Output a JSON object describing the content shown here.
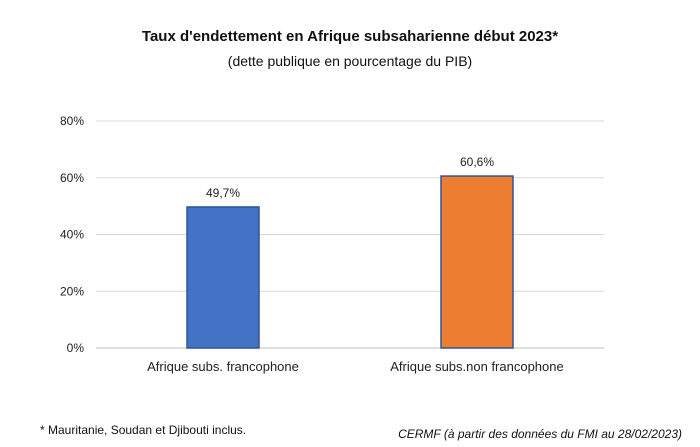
{
  "header": {
    "title": "Taux d'endettement en Afrique subsaharienne début 2023*",
    "subtitle": "(dette publique en pourcentage  du PIB)"
  },
  "footer": {
    "footnote": "* Mauritanie, Soudan et Djibouti inclus.",
    "source": "CERMF (à partir des données du FMI au 28/02/2023)"
  },
  "chart_data": {
    "type": "bar",
    "title": "Taux d'endettement en Afrique subsaharienne début 2023*",
    "subtitle": "(dette publique en pourcentage  du PIB)",
    "categories": [
      "Afrique subs. francophone",
      "Afrique subs.non  francophone"
    ],
    "values": [
      49.7,
      60.6
    ],
    "value_labels": [
      "49,7%",
      "60,6%"
    ],
    "colors": [
      "#4472C4",
      "#ED7D31"
    ],
    "ylim": [
      0,
      80
    ],
    "yticks": [
      0,
      20,
      40,
      60,
      80
    ],
    "ytick_labels": [
      "0%",
      "20%",
      "40%",
      "60%",
      "80%"
    ],
    "xlabel": "",
    "ylabel": "",
    "grid": true,
    "legend": "none"
  }
}
